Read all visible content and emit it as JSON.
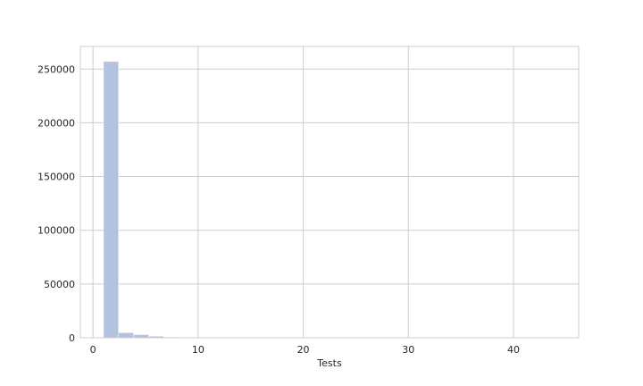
{
  "chart_data": {
    "type": "bar",
    "subtype": "histogram",
    "title": "",
    "xlabel": "Tests",
    "ylabel": "",
    "xlim": [
      -1.2,
      46.2
    ],
    "ylim": [
      0,
      271000
    ],
    "xticks": [
      0,
      10,
      20,
      30,
      40
    ],
    "yticks": [
      0,
      50000,
      100000,
      150000,
      200000,
      250000
    ],
    "grid": true,
    "bins": [
      {
        "x0": 1.0,
        "x1": 2.43,
        "value": 257000
      },
      {
        "x0": 2.43,
        "x1": 3.87,
        "value": 4700
      },
      {
        "x0": 3.87,
        "x1": 5.3,
        "value": 2900
      },
      {
        "x0": 5.3,
        "x1": 6.73,
        "value": 1400
      },
      {
        "x0": 6.73,
        "x1": 8.17,
        "value": 700
      },
      {
        "x0": 8.17,
        "x1": 9.6,
        "value": 350
      },
      {
        "x0": 9.6,
        "x1": 11.03,
        "value": 200
      },
      {
        "x0": 11.03,
        "x1": 12.47,
        "value": 120
      },
      {
        "x0": 12.47,
        "x1": 13.9,
        "value": 80
      },
      {
        "x0": 13.9,
        "x1": 15.33,
        "value": 50
      },
      {
        "x0": 15.33,
        "x1": 16.77,
        "value": 30
      },
      {
        "x0": 16.77,
        "x1": 18.2,
        "value": 20
      },
      {
        "x0": 18.2,
        "x1": 19.63,
        "value": 15
      },
      {
        "x0": 19.63,
        "x1": 21.07,
        "value": 10
      },
      {
        "x0": 21.07,
        "x1": 22.5,
        "value": 8
      },
      {
        "x0": 22.5,
        "x1": 23.93,
        "value": 5
      },
      {
        "x0": 23.93,
        "x1": 25.37,
        "value": 4
      },
      {
        "x0": 25.37,
        "x1": 26.8,
        "value": 3
      },
      {
        "x0": 26.8,
        "x1": 28.23,
        "value": 2
      },
      {
        "x0": 28.23,
        "x1": 29.67,
        "value": 2
      },
      {
        "x0": 29.67,
        "x1": 31.1,
        "value": 1
      },
      {
        "x0": 31.1,
        "x1": 32.53,
        "value": 1
      },
      {
        "x0": 32.53,
        "x1": 33.97,
        "value": 1
      },
      {
        "x0": 33.97,
        "x1": 35.4,
        "value": 1
      },
      {
        "x0": 35.4,
        "x1": 36.83,
        "value": 1
      },
      {
        "x0": 36.83,
        "x1": 38.27,
        "value": 1
      },
      {
        "x0": 38.27,
        "x1": 39.7,
        "value": 1
      },
      {
        "x0": 39.7,
        "x1": 41.13,
        "value": 1
      },
      {
        "x0": 41.13,
        "x1": 42.57,
        "value": 1
      },
      {
        "x0": 42.57,
        "x1": 44.0,
        "value": 1
      }
    ],
    "colors": {
      "bar": "#b3c2de",
      "grid": "#cccccc",
      "frame": "#cccccc",
      "text": "#262626"
    }
  }
}
